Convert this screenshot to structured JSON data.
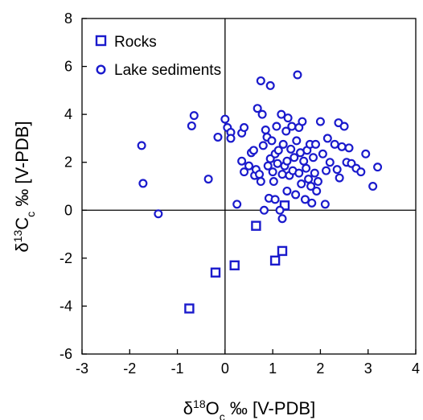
{
  "chart_data": {
    "type": "scatter",
    "xlabel": {
      "main": "δ",
      "sup": "18",
      "mid": "O",
      "sub": "c",
      "rest": " ‰ [V-PDB]"
    },
    "ylabel": {
      "main": "δ",
      "sup": "13",
      "mid": "C",
      "sub": "c",
      "rest": " ‰ [V-PDB]"
    },
    "xlim": [
      -3,
      4
    ],
    "ylim": [
      -6,
      8
    ],
    "xticks": [
      -3,
      -2,
      -1,
      0,
      1,
      2,
      3,
      4
    ],
    "yticks": [
      -6,
      -4,
      -2,
      0,
      2,
      4,
      6,
      8
    ],
    "reference_lines": {
      "x": 0,
      "y": 0
    },
    "grid": false,
    "legend_position": "top-left",
    "colors": {
      "marker": "#1a1acc",
      "axis": "#000000"
    },
    "series": [
      {
        "name": "Rocks",
        "marker": "square",
        "points": [
          [
            -0.75,
            -4.1
          ],
          [
            -0.2,
            -2.6
          ],
          [
            0.2,
            -2.3
          ],
          [
            0.65,
            -0.65
          ],
          [
            1.05,
            -2.1
          ],
          [
            1.2,
            -1.7
          ],
          [
            1.25,
            0.2
          ]
        ]
      },
      {
        "name": "Lake sediments",
        "marker": "circle",
        "points": [
          [
            -1.75,
            2.7
          ],
          [
            -1.72,
            1.12
          ],
          [
            -1.4,
            -0.15
          ],
          [
            -0.65,
            3.95
          ],
          [
            -0.7,
            3.52
          ],
          [
            -0.35,
            1.3
          ],
          [
            -0.15,
            3.05
          ],
          [
            0.0,
            3.8
          ],
          [
            0.05,
            3.45
          ],
          [
            0.12,
            3.25
          ],
          [
            0.12,
            3.0
          ],
          [
            0.25,
            0.25
          ],
          [
            0.35,
            3.22
          ],
          [
            0.4,
            3.45
          ],
          [
            0.35,
            2.05
          ],
          [
            0.4,
            1.6
          ],
          [
            0.5,
            1.85
          ],
          [
            0.55,
            2.4
          ],
          [
            0.6,
            2.5
          ],
          [
            0.62,
            1.45
          ],
          [
            0.65,
            1.7
          ],
          [
            0.68,
            4.25
          ],
          [
            0.72,
            1.5
          ],
          [
            0.75,
            5.4
          ],
          [
            0.75,
            1.2
          ],
          [
            0.78,
            4.0
          ],
          [
            0.8,
            2.7
          ],
          [
            0.82,
            0.0
          ],
          [
            0.85,
            3.35
          ],
          [
            0.88,
            3.05
          ],
          [
            0.9,
            1.85
          ],
          [
            0.92,
            0.5
          ],
          [
            0.95,
            5.2
          ],
          [
            0.95,
            2.15
          ],
          [
            0.98,
            2.9
          ],
          [
            1.0,
            1.6
          ],
          [
            1.02,
            1.2
          ],
          [
            1.05,
            0.45
          ],
          [
            1.05,
            2.35
          ],
          [
            1.08,
            3.5
          ],
          [
            1.1,
            1.95
          ],
          [
            1.12,
            2.5
          ],
          [
            1.15,
            0.0
          ],
          [
            1.18,
            4.0
          ],
          [
            1.2,
            1.5
          ],
          [
            1.2,
            -0.35
          ],
          [
            1.22,
            2.75
          ],
          [
            1.25,
            1.85
          ],
          [
            1.28,
            3.3
          ],
          [
            1.3,
            2.05
          ],
          [
            1.3,
            0.8
          ],
          [
            1.32,
            3.85
          ],
          [
            1.35,
            1.45
          ],
          [
            1.38,
            2.55
          ],
          [
            1.4,
            3.5
          ],
          [
            1.42,
            1.65
          ],
          [
            1.45,
            2.2
          ],
          [
            1.48,
            0.65
          ],
          [
            1.5,
            2.9
          ],
          [
            1.52,
            5.65
          ],
          [
            1.55,
            3.45
          ],
          [
            1.55,
            1.55
          ],
          [
            1.58,
            2.4
          ],
          [
            1.6,
            1.1
          ],
          [
            1.62,
            3.7
          ],
          [
            1.65,
            2.05
          ],
          [
            1.68,
            0.45
          ],
          [
            1.7,
            1.75
          ],
          [
            1.72,
            2.5
          ],
          [
            1.75,
            1.3
          ],
          [
            1.78,
            2.75
          ],
          [
            1.8,
            1.0
          ],
          [
            1.82,
            0.3
          ],
          [
            1.85,
            2.2
          ],
          [
            1.88,
            1.55
          ],
          [
            1.9,
            2.75
          ],
          [
            1.92,
            0.8
          ],
          [
            1.95,
            1.2
          ],
          [
            2.0,
            3.7
          ],
          [
            2.05,
            2.35
          ],
          [
            2.1,
            0.25
          ],
          [
            2.12,
            1.65
          ],
          [
            2.15,
            3.0
          ],
          [
            2.2,
            2.0
          ],
          [
            2.3,
            2.75
          ],
          [
            2.35,
            1.7
          ],
          [
            2.38,
            3.65
          ],
          [
            2.4,
            1.35
          ],
          [
            2.45,
            2.65
          ],
          [
            2.5,
            3.5
          ],
          [
            2.55,
            2.0
          ],
          [
            2.6,
            2.6
          ],
          [
            2.65,
            1.95
          ],
          [
            2.75,
            1.75
          ],
          [
            2.85,
            1.6
          ],
          [
            2.95,
            2.35
          ],
          [
            3.1,
            1.0
          ],
          [
            3.2,
            1.8
          ]
        ]
      }
    ]
  }
}
